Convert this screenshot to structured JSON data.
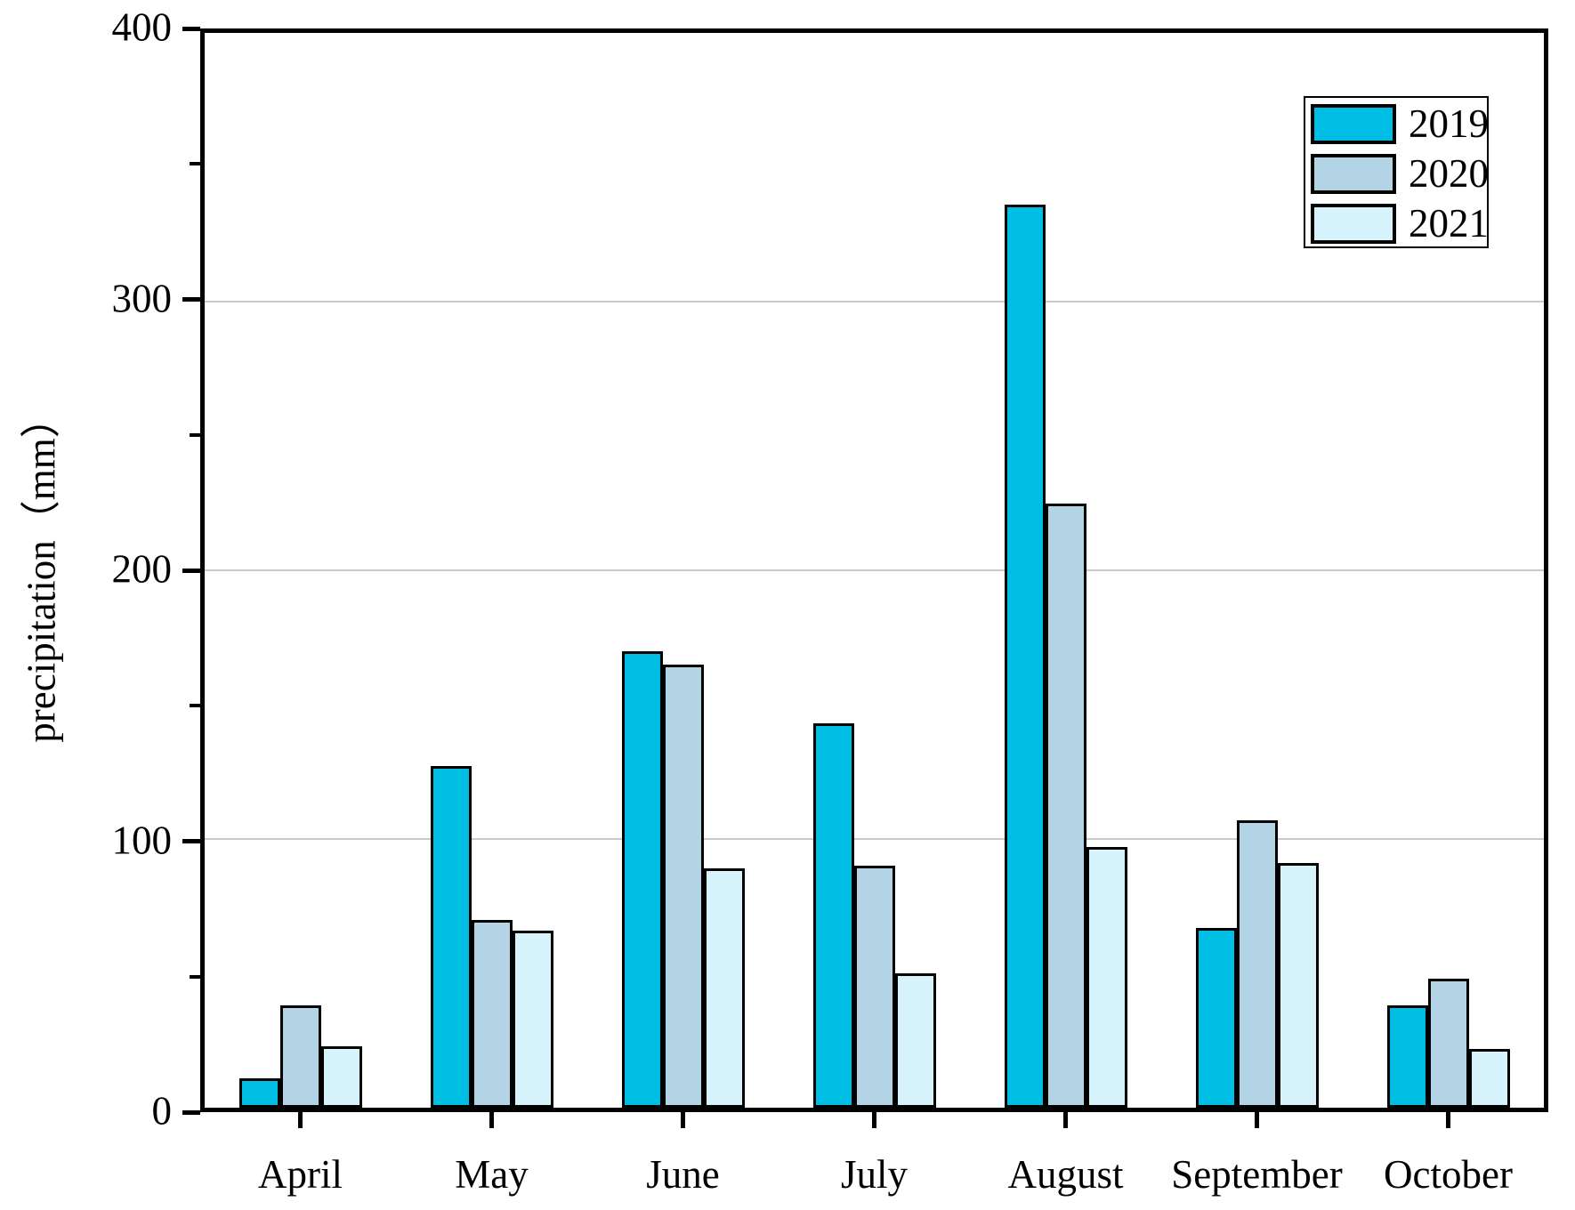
{
  "chart_data": {
    "type": "bar",
    "title": "",
    "xlabel": "",
    "ylabel": "precipitation（mm）",
    "categories": [
      "April",
      "May",
      "June",
      "July",
      "August",
      "September",
      "October"
    ],
    "series": [
      {
        "name": "2019",
        "color": "#00bde3",
        "values": [
          11,
          127,
          170,
          143,
          336,
          67,
          38
        ]
      },
      {
        "name": "2020",
        "color": "#b3d4e5",
        "values": [
          38,
          70,
          165,
          90,
          225,
          107,
          48
        ]
      },
      {
        "name": "2021",
        "color": "#d6f3fc",
        "values": [
          23,
          66,
          89,
          50,
          97,
          91,
          22
        ]
      }
    ],
    "ylim": [
      0,
      400
    ],
    "ytick_step": 100,
    "ytick_minor_step": 50,
    "ytick_labels": [
      "0",
      "100",
      "200",
      "300",
      "400"
    ],
    "grid": "horizontal",
    "gridline_values": [
      100,
      200,
      300
    ],
    "gridline_color": "#c9c9c9",
    "bar_edge_color": "#000000",
    "axis_color": "#000000",
    "legend_position": "top-right",
    "legend_entries": [
      "2019",
      "2020",
      "2021"
    ]
  }
}
